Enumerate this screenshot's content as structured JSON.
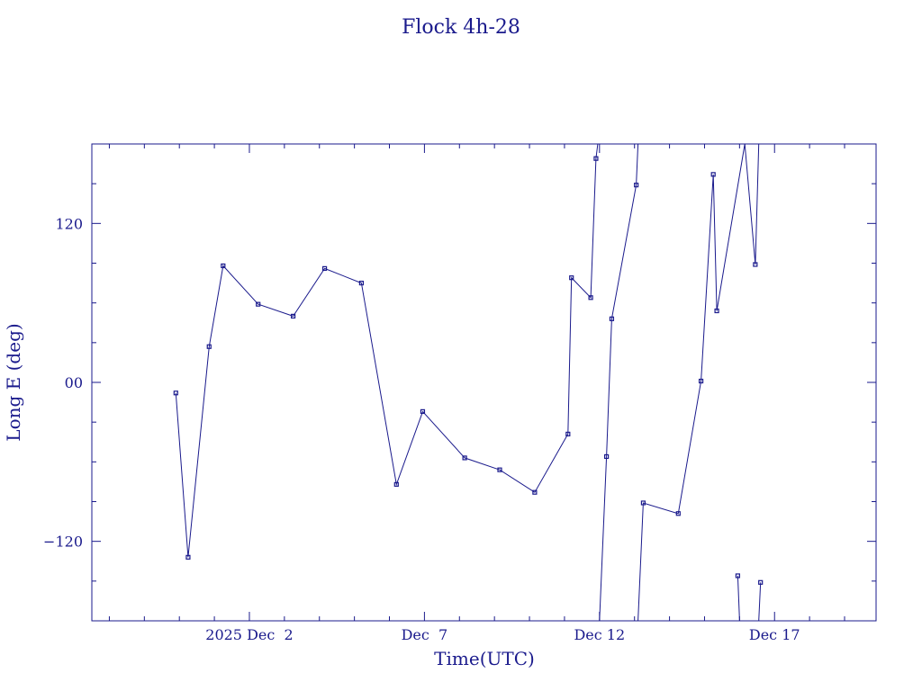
{
  "chart_data": {
    "type": "line",
    "title": "Flock 4h-28",
    "xlabel": "Time(UTC)",
    "ylabel": "Long E (deg)",
    "xlim": [
      -4.5,
      17.9
    ],
    "ylim": [
      -180,
      180
    ],
    "x_unit": "days relative to 2025 Dec 2",
    "xticks": [
      {
        "x": 0,
        "label": "2025 Dec  2"
      },
      {
        "x": 5,
        "label": "Dec  7"
      },
      {
        "x": 10,
        "label": "Dec 12"
      },
      {
        "x": 15,
        "label": "Dec 17"
      }
    ],
    "yticks": [
      {
        "y": 120,
        "label": "120"
      },
      {
        "y": 0,
        "label": "00"
      },
      {
        "y": -120,
        "label": "−120"
      }
    ],
    "grid": false,
    "color": "#1a1a8c",
    "points": [
      [
        -2.1,
        -8
      ],
      [
        -1.75,
        -132
      ],
      [
        -1.15,
        27
      ],
      [
        -0.75,
        88
      ],
      [
        0.25,
        59
      ],
      [
        1.25,
        50
      ],
      [
        2.15,
        86
      ],
      [
        3.2,
        75
      ],
      [
        4.2,
        -77
      ],
      [
        4.95,
        -22
      ],
      [
        6.15,
        -57
      ],
      [
        7.15,
        -66
      ],
      [
        8.15,
        -83
      ],
      [
        9.1,
        -39
      ],
      [
        9.2,
        79
      ],
      [
        9.75,
        64
      ],
      [
        9.9,
        169
      ],
      [
        9.95,
        180
      ],
      [
        10.0,
        -180
      ],
      [
        10.2,
        -56
      ],
      [
        10.35,
        48
      ],
      [
        11.05,
        149
      ],
      [
        11.1,
        180
      ],
      [
        11.1,
        -180
      ],
      [
        11.25,
        -91
      ],
      [
        12.25,
        -99
      ],
      [
        12.9,
        1
      ],
      [
        13.25,
        157
      ],
      [
        13.35,
        54
      ],
      [
        14.15,
        180
      ],
      [
        14.45,
        89
      ],
      [
        14.55,
        180
      ],
      [
        14.0,
        -180
      ],
      [
        13.95,
        -146
      ],
      [
        14.55,
        -180
      ],
      [
        14.6,
        -151
      ]
    ],
    "segments": [
      [
        0,
        17
      ],
      [
        18,
        22
      ],
      [
        23,
        31
      ],
      [
        32,
        33
      ],
      [
        34,
        35
      ]
    ]
  }
}
